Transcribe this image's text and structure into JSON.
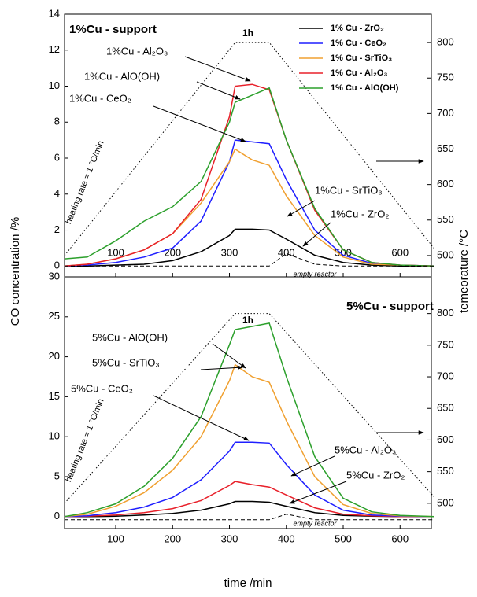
{
  "chart_data": [
    {
      "type": "line",
      "x": [
        10,
        50,
        100,
        150,
        200,
        250,
        300,
        310,
        340,
        370,
        400,
        450,
        500,
        550,
        600,
        660
      ],
      "xlim": [
        10,
        655
      ],
      "xticks": [
        100,
        200,
        300,
        400,
        500,
        600
      ],
      "ylim": [
        -0.6,
        14
      ],
      "yticks": [
        0,
        2,
        4,
        6,
        8,
        10,
        12,
        14
      ],
      "y2lim": [
        470,
        840
      ],
      "y2ticks": [
        500,
        550,
        600,
        650,
        700,
        750,
        800
      ],
      "ylabel": "CO concentration /%",
      "y2label": "temeorature /°C",
      "legend": "upper right",
      "series": [
        {
          "name": "1% Cu - ZrO₂",
          "color": "#000000",
          "values": [
            0,
            0,
            0.05,
            0.1,
            0.3,
            0.8,
            1.7,
            2.05,
            2.05,
            2.0,
            1.5,
            0.6,
            0.2,
            0.05,
            0,
            0
          ]
        },
        {
          "name": "1% Cu - CeO₂",
          "color": "#1f1fff",
          "values": [
            0,
            0.05,
            0.2,
            0.5,
            1.0,
            2.5,
            5.8,
            7.0,
            6.9,
            6.8,
            4.8,
            2.0,
            0.6,
            0.15,
            0.05,
            0
          ]
        },
        {
          "name": "1% Cu - SrTiO₃",
          "color": "#f0a030",
          "values": [
            0,
            0.1,
            0.4,
            0.9,
            1.8,
            3.5,
            5.8,
            6.5,
            5.9,
            5.6,
            3.9,
            1.7,
            0.5,
            0.1,
            0.05,
            0
          ]
        },
        {
          "name": "1% Cu - Al₂O₃",
          "color": "#e8202a",
          "values": [
            0,
            0.1,
            0.4,
            0.9,
            1.8,
            3.7,
            8.3,
            10.0,
            10.1,
            9.8,
            7.0,
            3.1,
            0.9,
            0.2,
            0.05,
            0
          ]
        },
        {
          "name": "1% Cu - AlO(OH)",
          "color": "#2ca02c",
          "values": [
            0.4,
            0.5,
            1.4,
            2.5,
            3.3,
            4.7,
            8.0,
            9.1,
            9.5,
            9.9,
            7.0,
            3.2,
            0.9,
            0.2,
            0.05,
            0
          ]
        },
        {
          "color": "#000000",
          "style": "dashed",
          "values": [
            0,
            0,
            0,
            0,
            0,
            0,
            0,
            0,
            0,
            0,
            0.7,
            0.1,
            0,
            0,
            0,
            0
          ]
        },
        {
          "color": "#000000",
          "style": "dotted",
          "axis": "y2",
          "values": [
            500,
            540,
            590,
            640,
            690,
            740,
            790,
            800,
            800,
            800,
            770,
            720,
            670,
            620,
            570,
            510
          ]
        }
      ],
      "annotations": [
        "1%Cu - support",
        "1h",
        "1%Cu - Al₂O₃",
        "1%Cu - AlO(OH)",
        "1%Cu - CeO₂",
        "1%Cu - SrTiO₃",
        "1%Cu - ZrO₂",
        "heating rate = 1 °C/min",
        "empty reactor"
      ]
    },
    {
      "type": "line",
      "x": [
        10,
        50,
        100,
        150,
        200,
        250,
        300,
        310,
        340,
        370,
        400,
        450,
        500,
        550,
        600,
        660
      ],
      "xlim": [
        10,
        655
      ],
      "xticks": [
        100,
        200,
        300,
        400,
        500,
        600
      ],
      "ylim": [
        -1.5,
        30
      ],
      "yticks": [
        0,
        5,
        10,
        15,
        20,
        25,
        30
      ],
      "y2lim": [
        460,
        858
      ],
      "y2ticks": [
        500,
        550,
        600,
        650,
        700,
        750,
        800
      ],
      "xlabel": "time /min",
      "series": [
        {
          "color": "#000000",
          "values": [
            0,
            0,
            0.05,
            0.2,
            0.4,
            0.8,
            1.6,
            1.9,
            1.9,
            1.8,
            1.3,
            0.5,
            0.15,
            0.05,
            0,
            0
          ]
        },
        {
          "color": "#e8202a",
          "values": [
            0,
            0.05,
            0.2,
            0.5,
            1.0,
            2.0,
            3.9,
            4.4,
            4.0,
            3.7,
            2.7,
            1.1,
            0.3,
            0.1,
            0,
            0
          ]
        },
        {
          "color": "#1f1fff",
          "values": [
            0,
            0.1,
            0.5,
            1.2,
            2.4,
            4.6,
            8.2,
            9.3,
            9.3,
            9.2,
            6.5,
            2.7,
            0.8,
            0.2,
            0.05,
            0
          ]
        },
        {
          "color": "#f0a030",
          "values": [
            0,
            0.3,
            1.3,
            3.0,
            5.8,
            10.0,
            17.0,
            19.0,
            17.5,
            16.8,
            12.0,
            5.0,
            1.5,
            0.4,
            0.1,
            0
          ]
        },
        {
          "color": "#2ca02c",
          "values": [
            0,
            0.5,
            1.6,
            3.8,
            7.3,
            12.5,
            21.5,
            23.4,
            23.8,
            24.2,
            17.5,
            7.5,
            2.3,
            0.6,
            0.15,
            0
          ]
        },
        {
          "color": "#000000",
          "style": "dashed",
          "values": [
            -0.4,
            -0.4,
            -0.4,
            -0.4,
            -0.4,
            -0.4,
            -0.4,
            -0.4,
            -0.4,
            -0.4,
            0.3,
            -0.4,
            -0.4,
            -0.4,
            -0.4,
            -0.4
          ]
        },
        {
          "color": "#000000",
          "style": "dotted",
          "axis": "y2",
          "values": [
            500,
            540,
            590,
            640,
            690,
            740,
            790,
            800,
            800,
            800,
            770,
            720,
            670,
            620,
            570,
            510
          ]
        }
      ],
      "annotations": [
        "5%Cu - support",
        "1h",
        "5%Cu - AlO(OH)",
        "5%Cu - SrTiO₃",
        "5%Cu - CeO₂",
        "5%Cu - Al₂O₃",
        "5%Cu - ZrO₂",
        "heating rate = 1 °C/min",
        "empty reactor"
      ]
    }
  ]
}
